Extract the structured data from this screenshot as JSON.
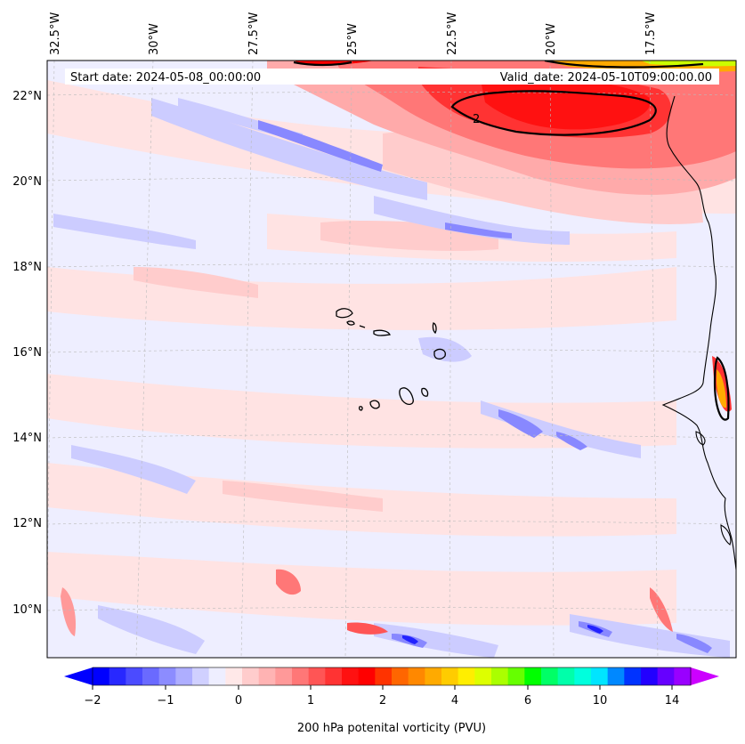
{
  "map": {
    "start_date": "Start date: 2024-05-08_00:00:00",
    "valid_date": "Valid_date: 2024-05-10T09:00:00.00",
    "lon_labels": [
      "32.5°W",
      "30°W",
      "27.5°W",
      "25°W",
      "22.5°W",
      "20°W",
      "17.5°W"
    ],
    "lat_labels": [
      "22°N",
      "20°N",
      "18°N",
      "16°N",
      "14°N",
      "12°N",
      "10°N"
    ],
    "contour_label": "2",
    "colors": {
      "background_field": "#eeeeff",
      "light_pink": "#ffdddd",
      "pink": "#ffbbbb",
      "red_mid": "#ff7777",
      "red_strong": "#ff2a2a",
      "light_blue": "#ccccff",
      "blue": "#8888ff",
      "deep_blue": "#2222ff",
      "coastline": "#000000"
    }
  },
  "colorbar": {
    "tick_labels": [
      "−2",
      "−1",
      "0",
      "1",
      "2",
      "4",
      "6",
      "10",
      "14"
    ],
    "label": "200 hPa potenital vorticity (PVU)",
    "colors": [
      "#0000ff",
      "#2828ff",
      "#4b4bff",
      "#6a6aff",
      "#8c8cff",
      "#aeaeff",
      "#d0d0ff",
      "#eeeeff",
      "#ffe8e8",
      "#ffcccc",
      "#ffb3b3",
      "#ff9999",
      "#ff7777",
      "#ff5555",
      "#ff3333",
      "#ff1111",
      "#ff0000",
      "#ff3300",
      "#ff6600",
      "#ff8800",
      "#ffaa00",
      "#ffcc00",
      "#ffee00",
      "#ddff00",
      "#aaff00",
      "#66ff00",
      "#00ff00",
      "#00ff66",
      "#00ffaa",
      "#00ffdd",
      "#00e5ff",
      "#0088ff",
      "#0033ff",
      "#2200ff",
      "#6600ff",
      "#9900ff"
    ],
    "extend_low_color": "#0000ff",
    "extend_high_color": "#cc00ff"
  }
}
